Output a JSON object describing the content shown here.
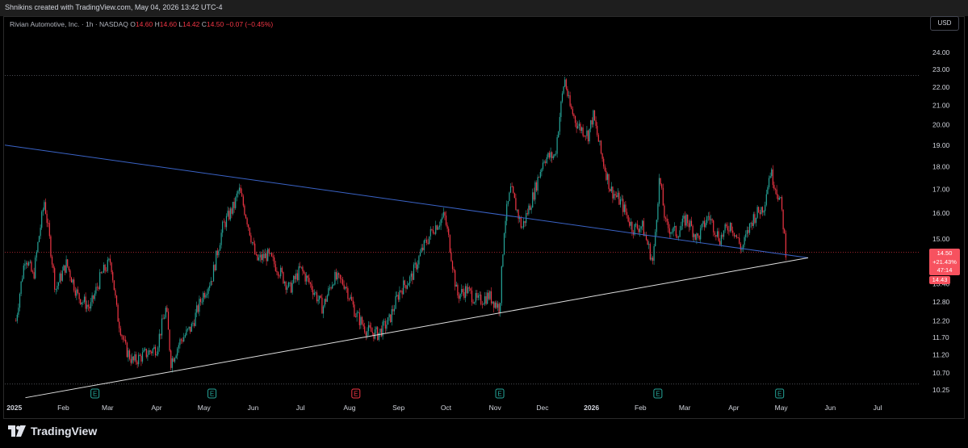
{
  "header": {
    "title": "Shnikins created with TradingView.com, May 04, 2026 13:42 UTC-4"
  },
  "legend": {
    "symbol": "Rivian Automotive, Inc. · 1h · NASDAQ",
    "o_label": "O",
    "o_value": "14.60",
    "h_label": "H",
    "h_value": "14.60",
    "l_label": "L",
    "l_value": "14.42",
    "c_label": "C",
    "c_value": "14.50",
    "change": "−0.07 (−0.45%)"
  },
  "currency_button": "USD",
  "price_tag": {
    "price": "14.50",
    "percent": "+21.43%",
    "countdown": "47:14",
    "low": "14.43"
  },
  "logo": {
    "text": "TradingView"
  },
  "chart_data": {
    "type": "line",
    "title": "",
    "xlabel": "",
    "ylabel": "",
    "y_scale": "log",
    "ylim": [
      10.25,
      24.0
    ],
    "y_ticks": [
      "24.00",
      "23.00",
      "22.00",
      "21.00",
      "20.00",
      "19.00",
      "18.00",
      "17.00",
      "16.00",
      "15.00",
      "13.40",
      "12.80",
      "12.20",
      "11.70",
      "11.20",
      "10.70",
      "10.25"
    ],
    "x_ticks": [
      "2025",
      "Feb",
      "Mar",
      "Apr",
      "May",
      "Jun",
      "Jul",
      "Aug",
      "Sep",
      "Oct",
      "Nov",
      "Dec",
      "2026",
      "Feb",
      "Mar",
      "Apr",
      "May",
      "Jun",
      "Jul"
    ],
    "grid": false,
    "legend_position": "top-left",
    "series": [
      {
        "x": [
          "2025-01-02",
          "2025-01-08",
          "2025-01-13",
          "2025-01-20",
          "2025-01-27",
          "2025-02-03",
          "2025-02-10",
          "2025-02-18",
          "2025-02-25",
          "2025-03-03",
          "2025-03-07",
          "2025-03-12",
          "2025-03-17",
          "2025-03-24",
          "2025-04-01",
          "2025-04-07",
          "2025-04-10",
          "2025-04-16",
          "2025-04-23",
          "2025-04-30",
          "2025-05-06",
          "2025-05-13",
          "2025-05-20",
          "2025-05-23",
          "2025-05-28",
          "2025-06-03",
          "2025-06-10",
          "2025-06-17",
          "2025-06-24",
          "2025-07-01",
          "2025-07-08",
          "2025-07-15",
          "2025-07-22",
          "2025-07-29",
          "2025-08-05",
          "2025-08-12",
          "2025-08-19",
          "2025-08-26",
          "2025-09-02",
          "2025-09-09",
          "2025-09-16",
          "2025-09-23",
          "2025-09-30",
          "2025-10-03",
          "2025-10-08",
          "2025-10-14",
          "2025-10-21",
          "2025-10-28",
          "2025-11-04",
          "2025-11-07",
          "2025-11-11",
          "2025-11-18",
          "2025-11-25",
          "2025-12-02",
          "2025-12-09",
          "2025-12-12",
          "2025-12-15",
          "2025-12-18",
          "2025-12-23",
          "2025-12-30",
          "2026-01-02",
          "2026-01-07",
          "2026-01-13",
          "2026-01-20",
          "2026-01-27",
          "2026-02-02",
          "2026-02-09",
          "2026-02-13",
          "2026-02-17",
          "2026-02-24",
          "2026-03-02",
          "2026-03-09",
          "2026-03-16",
          "2026-03-23",
          "2026-03-30",
          "2026-04-06",
          "2026-04-13",
          "2026-04-20",
          "2026-04-24",
          "2026-04-28",
          "2026-05-01",
          "2026-05-04"
        ],
        "values": [
          12.2,
          14.4,
          13.6,
          16.5,
          13.2,
          14.1,
          13.0,
          12.6,
          13.7,
          14.2,
          12.4,
          11.4,
          11.0,
          11.2,
          11.4,
          12.6,
          11.0,
          11.6,
          12.0,
          13.0,
          13.6,
          15.5,
          16.3,
          17.0,
          15.8,
          14.2,
          14.4,
          13.9,
          13.2,
          13.9,
          13.3,
          12.6,
          13.6,
          13.4,
          12.4,
          11.9,
          11.8,
          12.2,
          13.2,
          13.6,
          14.6,
          15.4,
          15.9,
          14.9,
          13.0,
          13.2,
          12.8,
          13.0,
          12.6,
          15.6,
          17.0,
          15.4,
          16.7,
          18.4,
          18.5,
          20.5,
          22.5,
          21.0,
          20.0,
          19.5,
          20.5,
          18.6,
          17.0,
          16.4,
          15.4,
          15.5,
          14.1,
          17.5,
          15.5,
          15.2,
          15.8,
          15.0,
          15.9,
          15.0,
          15.6,
          14.6,
          15.8,
          16.3,
          17.8,
          17.0,
          16.3,
          14.5
        ]
      }
    ],
    "annotations": {
      "trendline_upper": {
        "start": {
          "x": "2024-12-26",
          "y": 19.0
        },
        "end": {
          "x": "2026-05-18",
          "y": 14.3
        }
      },
      "trendline_lower": {
        "start": {
          "x": "2025-01-08",
          "y": 10.05
        },
        "end": {
          "x": "2026-05-18",
          "y": 14.3
        }
      },
      "horizontal_line_high": 22.65,
      "horizontal_line_low": 10.4,
      "current_price_line": 14.5,
      "earnings_markers": [
        {
          "date": "2025-02-21",
          "label": "E",
          "type": "positive"
        },
        {
          "date": "2025-05-06",
          "label": "E",
          "type": "positive"
        },
        {
          "date": "2025-08-05",
          "label": "E",
          "type": "negative"
        },
        {
          "date": "2025-11-04",
          "label": "E",
          "type": "positive"
        },
        {
          "date": "2026-02-12",
          "label": "E",
          "type": "positive"
        },
        {
          "date": "2026-04-30",
          "label": "E",
          "type": "positive"
        }
      ]
    }
  },
  "colors": {
    "up": "#26a69a",
    "down": "#f23645",
    "upper_trend": "#3a63c6",
    "lower_trend": "#e0e0e0",
    "price_tag": "#f7525f"
  }
}
